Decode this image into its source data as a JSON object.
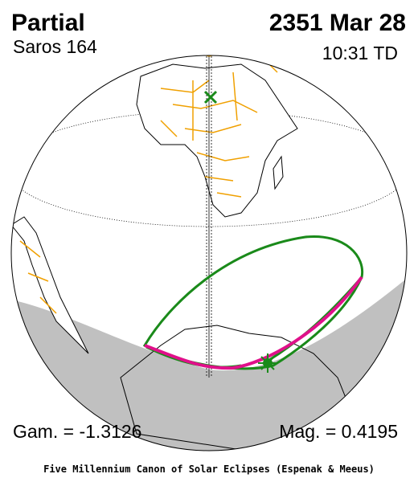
{
  "header": {
    "title": "Partial",
    "date": "2351 Mar 28",
    "saros": "Saros 164",
    "time": "10:31 TD"
  },
  "footer": {
    "gamma": "Gam. = -1.3126",
    "magnitude": "Mag. = 0.4195",
    "credit": "Five Millennium Canon of Solar Eclipses (Espenak & Meeus)"
  }
}
